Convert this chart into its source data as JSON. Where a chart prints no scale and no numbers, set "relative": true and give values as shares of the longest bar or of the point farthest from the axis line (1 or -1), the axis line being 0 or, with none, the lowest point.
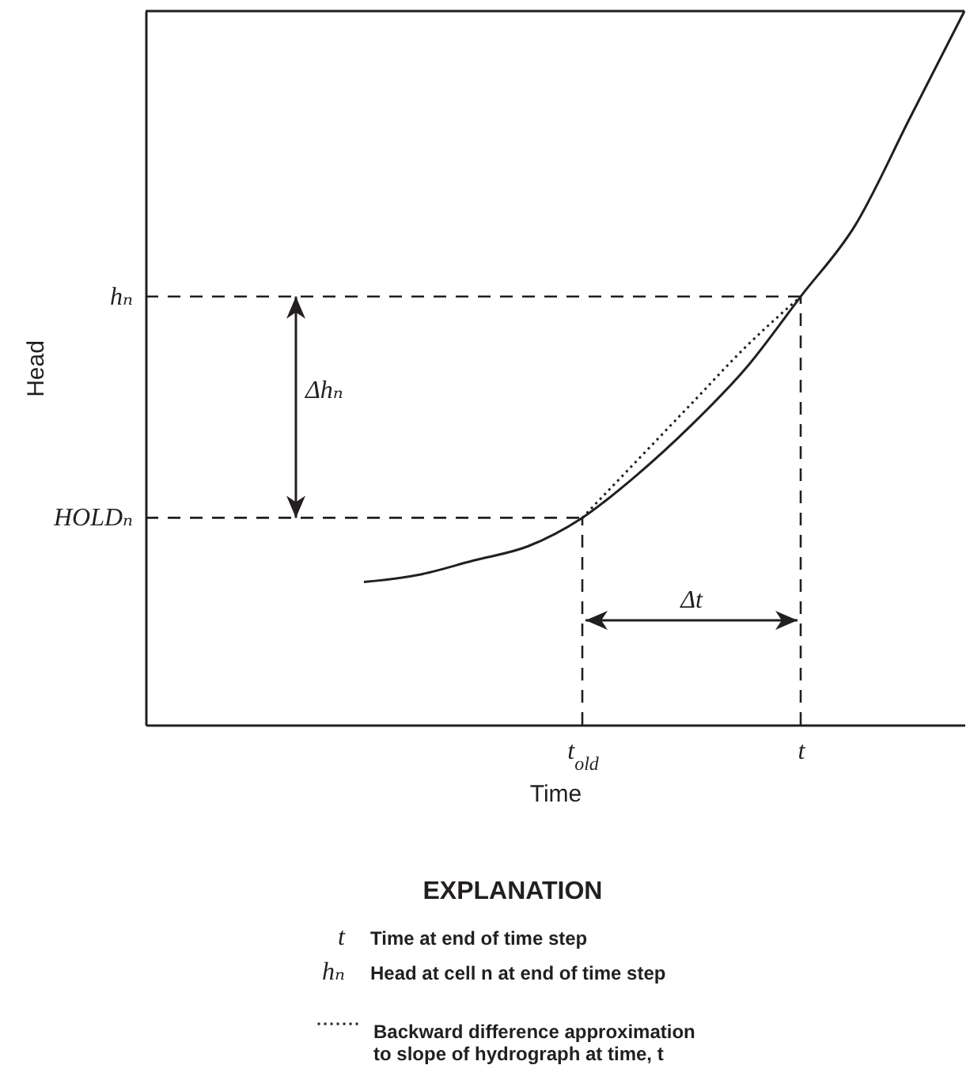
{
  "chart_data": {
    "type": "line",
    "relative": true,
    "xlabel": "Time",
    "ylabel": "Head",
    "legend": "bottom",
    "legend_title": "EXPLANATION",
    "categories": [
      null,
      null,
      null,
      null,
      null,
      null,
      null,
      null,
      "t$_{old}$",
      null,
      null,
      null,
      "t",
      null,
      null,
      null
    ],
    "series": [
      {
        "color": "#231f20",
        "values": [
          null,
          null,
          null,
          null,
          0.2,
          0.21,
          0.23,
          0.25,
          0.29,
          0.35,
          0.42,
          0.5,
          0.6,
          0.7,
          0.85,
          1
        ]
      },
      {
        "name": "Backward difference approximation to slope of hydrograph at time, t",
        "color": "#231f20",
        "line_style": "dotted",
        "values": [
          null,
          null,
          null,
          null,
          null,
          null,
          null,
          null,
          0.29,
          0.37,
          0.45,
          0.53,
          0.6,
          null,
          null,
          null
        ]
      }
    ],
    "ref_lines": [
      {
        "axis": "y",
        "value": 0.6,
        "label": "hₙ",
        "line_style": "dashed"
      },
      {
        "axis": "y",
        "value": 0.29,
        "label": "HOLDₙ",
        "line_style": "dashed"
      },
      {
        "axis": "x",
        "value": "t$_{old}$",
        "line_style": "dashed"
      },
      {
        "axis": "x",
        "value": "t",
        "line_style": "dashed"
      }
    ],
    "annotations": [
      "Δhₙ",
      "Δt",
      "t Time at end of time step",
      "hₙ Head at cell n at end of time step"
    ]
  }
}
